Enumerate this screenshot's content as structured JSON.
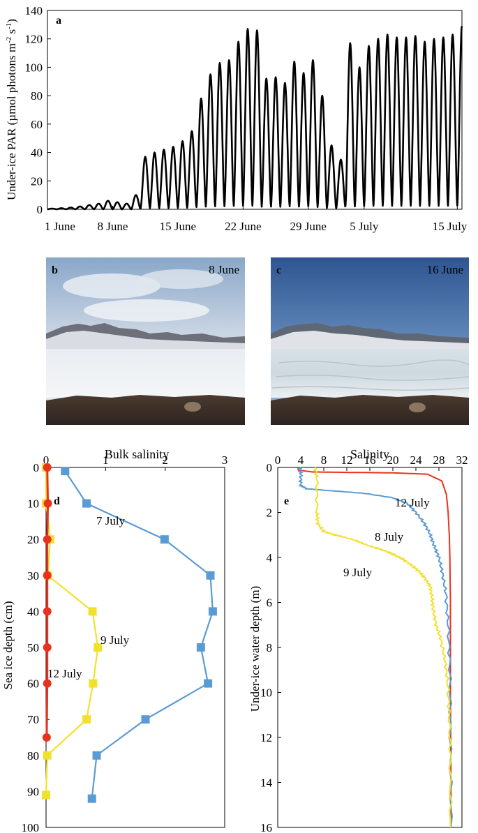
{
  "chart_data": [
    {
      "panel": "a",
      "type": "line",
      "ylabel_main": "Under-ice PAR (µmol photons m",
      "ylabel_sup1": "-2",
      "ylabel_mid": " s",
      "ylabel_sup2": "-1",
      "ylabel_end": ")",
      "ylim": [
        0,
        140
      ],
      "yticks": [
        0,
        20,
        40,
        60,
        80,
        100,
        120,
        140
      ],
      "xlim_days": [
        0,
        44.5
      ],
      "xtick_labels": [
        "1 June",
        "8 June",
        "15 June",
        "22 June",
        "29 June",
        "5 July",
        "15 July"
      ],
      "xtick_days": [
        0,
        7,
        14,
        21,
        28,
        34,
        44
      ],
      "color": "#000000",
      "daily_peak_par": [
        0.5,
        0.8,
        1.2,
        2,
        3,
        4,
        6,
        5,
        4,
        10,
        37,
        40,
        42,
        44,
        48,
        55,
        78,
        95,
        103,
        105,
        118,
        127,
        126,
        92,
        93,
        89,
        104,
        96,
        105,
        80,
        45,
        35,
        117,
        100,
        115,
        120,
        123,
        121,
        121,
        122,
        118,
        120,
        121,
        123,
        129
      ]
    },
    {
      "panel": "d",
      "type": "line",
      "xlabel": "Bulk salinity",
      "ylabel": "Sea ice depth (cm)",
      "xlim": [
        0,
        3
      ],
      "ylim": [
        0,
        100
      ],
      "xticks": [
        0,
        1,
        2,
        3
      ],
      "yticks": [
        0,
        10,
        20,
        30,
        40,
        50,
        60,
        70,
        80,
        90,
        100
      ],
      "series": [
        {
          "name": "7 July",
          "color": "#5B9BD5",
          "marker": "square",
          "x": [
            0.32,
            0.68,
            1.99,
            2.76,
            2.8,
            2.6,
            2.72,
            1.67,
            0.85,
            0.77
          ],
          "y": [
            1,
            10,
            20,
            30,
            40,
            50,
            60,
            70,
            80,
            92
          ]
        },
        {
          "name": "9 July",
          "color": "#F2E12C",
          "marker": "square",
          "x": [
            0.0,
            0.0,
            0.07,
            0.03,
            0.78,
            0.87,
            0.79,
            0.68,
            0.02,
            0.0
          ],
          "y": [
            0,
            10,
            20,
            30,
            40,
            50,
            60,
            70,
            80,
            91
          ]
        },
        {
          "name": "12 July",
          "color": "#E8321E",
          "marker": "circle",
          "x": [
            0.02,
            0.03,
            0.02,
            0.02,
            0.02,
            0.02,
            0.02,
            0.01
          ],
          "y": [
            0,
            10,
            20,
            30,
            40,
            50,
            60,
            75
          ]
        }
      ],
      "annotations": [
        "7 July",
        "9 July",
        "12 July"
      ]
    },
    {
      "panel": "e",
      "type": "line",
      "xlabel": "Salinity",
      "ylabel": "Under-ice water depth (m)",
      "xlim": [
        0,
        32
      ],
      "ylim": [
        0,
        16
      ],
      "xticks": [
        0,
        4,
        8,
        12,
        16,
        20,
        24,
        28,
        32
      ],
      "yticks": [
        0,
        2,
        4,
        6,
        8,
        10,
        12,
        14,
        16
      ],
      "series": [
        {
          "name": "12 July",
          "color": "#E8321E",
          "x": [
            3.5,
            3.6,
            6,
            12,
            20,
            26,
            28.5,
            29.3,
            29.6,
            29.8,
            29.9,
            30.0,
            30.0,
            30.1,
            30.1
          ],
          "y": [
            0,
            0.12,
            0.2,
            0.22,
            0.24,
            0.3,
            0.6,
            1.2,
            2,
            3,
            4,
            6,
            10,
            14,
            16
          ]
        },
        {
          "name": "8 July",
          "color": "#5B9BD5",
          "x": [
            3.8,
            4.0,
            4.0,
            5,
            10,
            15,
            20,
            22.5,
            24,
            25.5,
            26.5,
            27.2,
            28,
            28.6,
            29.2,
            29.6,
            29.9,
            30.0,
            30.1
          ],
          "y": [
            0,
            0.3,
            0.8,
            0.95,
            1.05,
            1.15,
            1.35,
            1.6,
            2,
            2.5,
            3,
            3.5,
            4,
            4.7,
            5.6,
            7,
            9,
            12,
            16
          ]
        },
        {
          "name": "9 July",
          "color": "#F2E12C",
          "x": [
            6.5,
            6.8,
            6.8,
            7,
            8,
            10,
            13,
            15.5,
            18,
            20,
            21.5,
            23,
            24.5,
            25.5,
            26.5,
            26.8,
            27,
            27.5,
            28.3,
            29,
            29.5,
            29.8,
            30.0,
            30.0
          ],
          "y": [
            0,
            0.5,
            2,
            2.5,
            2.85,
            3.0,
            3.2,
            3.45,
            3.65,
            3.85,
            4.05,
            4.3,
            4.6,
            4.9,
            5.3,
            5.8,
            6.3,
            7,
            7.6,
            8.5,
            9.5,
            11,
            13,
            16
          ]
        }
      ],
      "annotations": [
        "12 July",
        "8 July",
        "9 July"
      ]
    }
  ],
  "panel_labels": {
    "a": "a",
    "b": "b",
    "c": "c",
    "d": "d",
    "e": "e"
  },
  "photos": {
    "b": {
      "label": "b",
      "date": "8 June"
    },
    "c": {
      "label": "c",
      "date": "16 June"
    }
  },
  "colors": {
    "blue": "#5B9BD5",
    "yellow": "#F2E12C",
    "red": "#E8321E",
    "black": "#000000"
  }
}
